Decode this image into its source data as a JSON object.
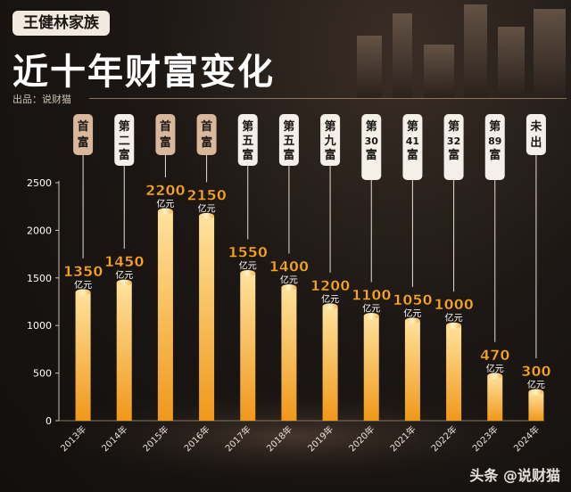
{
  "header": {
    "family_tag": "王健林家族",
    "title": "近十年财富变化",
    "source": "出品：说财猫"
  },
  "watermark": "头条 @说财猫",
  "colors": {
    "bar_top": "#ffd88a",
    "bar_bottom": "#f09a1c",
    "value_text": "#f6a623",
    "unit_text": "#ffffff",
    "rank_box_top": "#d9b79b",
    "rank_box_other": "#f4efe9"
  },
  "chart_data": {
    "type": "bar",
    "title": "近十年财富变化",
    "xlabel": "",
    "ylabel": "",
    "ylim": [
      0,
      2500
    ],
    "yticks": [
      0,
      500,
      1000,
      1500,
      2000,
      2500
    ],
    "categories": [
      "2013年",
      "2014年",
      "2015年",
      "2016年",
      "2017年",
      "2018年",
      "2019年",
      "2020年",
      "2021年",
      "2022年",
      "2023年",
      "2024年"
    ],
    "values": [
      1350,
      1450,
      2200,
      2150,
      1550,
      1400,
      1200,
      1100,
      1050,
      1000,
      470,
      300
    ],
    "value_labels": [
      "1350",
      "1450",
      "2200",
      "2150",
      "1550",
      "1400",
      "1200",
      "1100",
      "1050",
      "1000",
      "470",
      "300"
    ],
    "unit": "亿元",
    "ranks": [
      {
        "text": "首富",
        "highlight": true
      },
      {
        "text": "第二富",
        "highlight": false
      },
      {
        "text": "首富",
        "highlight": true
      },
      {
        "text": "首富",
        "highlight": true
      },
      {
        "text": "第五富",
        "highlight": false
      },
      {
        "text": "第五富",
        "highlight": false
      },
      {
        "text": "第九富",
        "highlight": false
      },
      {
        "text": "第30富",
        "highlight": false
      },
      {
        "text": "第41富",
        "highlight": false
      },
      {
        "text": "第32富",
        "highlight": false
      },
      {
        "text": "第89富",
        "highlight": false
      },
      {
        "text": "未出",
        "highlight": false
      }
    ]
  }
}
